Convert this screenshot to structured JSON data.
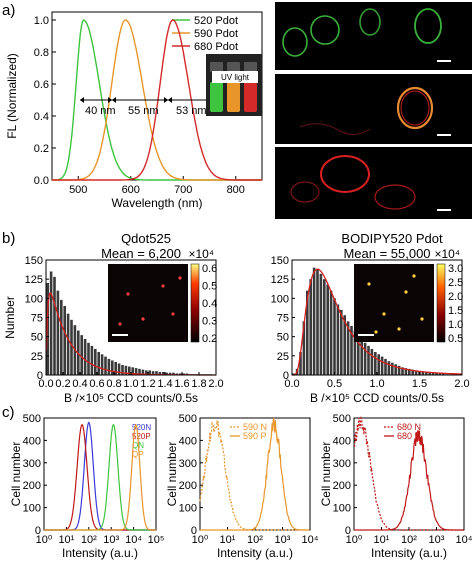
{
  "panels": {
    "a": "a)",
    "b": "b)",
    "c": "c)"
  },
  "colors": {
    "green": "#3ec43e",
    "orange": "#e8962a",
    "red": "#d42a2a",
    "blue": "#3a3adb",
    "dark_red": "#c01818",
    "hist_bar": "#3a3a3a",
    "fit": "#d42020",
    "micro_bg": "#0a0404"
  },
  "panel_a": {
    "uv_label": "UV light",
    "widths": [
      "40 nm",
      "55 nm",
      "53 nm"
    ]
  },
  "panel_b": {
    "left": {
      "title": "Qdot525",
      "mean": "Mean = 6,200",
      "multiplier": "×10⁴",
      "cbar_ticks": [
        "0.6",
        "0.5",
        "0.4",
        "0.3",
        "0.2"
      ]
    },
    "right": {
      "title": "BODIPY520 Pdot",
      "mean": "Mean = 55,000",
      "multiplier": "×10⁴",
      "cbar_ticks": [
        "3.0",
        "2.5",
        "2.0",
        "1.5",
        "1.0",
        "0.5"
      ]
    }
  },
  "chart_data": [
    {
      "type": "line",
      "panel": "a",
      "xlabel": "Wavelength (nm)",
      "ylabel": "FL (Normalized)",
      "xlim": [
        450,
        850
      ],
      "ylim": [
        0.0,
        1.05
      ],
      "xticks": [
        500,
        600,
        700,
        800
      ],
      "yticks": [
        "0.0",
        "0.2",
        "0.4",
        "0.6",
        "0.8",
        "1.0"
      ],
      "legend_position": "top-right",
      "series": [
        {
          "name": "520 Pdot",
          "color": "#3ec43e",
          "peak": 510,
          "sigma_left": 14,
          "sigma_right": 30,
          "values": [
            [
              470,
              0.0
            ],
            [
              490,
              0.4
            ],
            [
              505,
              0.95
            ],
            [
              510,
              1.0
            ],
            [
              530,
              0.75
            ],
            [
              550,
              0.4
            ],
            [
              580,
              0.12
            ],
            [
              620,
              0.02
            ],
            [
              650,
              0.0
            ]
          ]
        },
        {
          "name": "590 Pdot",
          "color": "#e8962a",
          "peak": 590,
          "sigma_left": 26,
          "sigma_right": 32,
          "values": [
            [
              500,
              0.02
            ],
            [
              540,
              0.2
            ],
            [
              570,
              0.75
            ],
            [
              590,
              1.0
            ],
            [
              610,
              0.8
            ],
            [
              640,
              0.35
            ],
            [
              680,
              0.08
            ],
            [
              720,
              0.0
            ]
          ]
        },
        {
          "name": "680 Pdot",
          "color": "#d42a2a",
          "peak": 680,
          "sigma_left": 24,
          "sigma_right": 30,
          "values": [
            [
              600,
              0.03
            ],
            [
              640,
              0.3
            ],
            [
              665,
              0.85
            ],
            [
              680,
              1.0
            ],
            [
              700,
              0.8
            ],
            [
              730,
              0.35
            ],
            [
              770,
              0.06
            ],
            [
              810,
              0.0
            ]
          ]
        }
      ]
    },
    {
      "type": "bar",
      "panel": "b-left",
      "xlabel": "B /×10⁵ CCD counts/0.5s",
      "ylabel": "Number",
      "xlim": [
        0.0,
        2.0
      ],
      "ylim": [
        0,
        150
      ],
      "xticks": [
        "0.0",
        "0.2",
        "0.4",
        "0.6",
        "0.8",
        "1.0",
        "1.2",
        "1.4",
        "1.6",
        "1.8",
        "2.0"
      ],
      "yticks": [
        "0",
        "25",
        "50",
        "75",
        "100",
        "125",
        "150"
      ],
      "bin_width": 0.04,
      "values": [
        120,
        135,
        128,
        110,
        98,
        90,
        80,
        72,
        65,
        58,
        52,
        47,
        42,
        38,
        34,
        30,
        27,
        24,
        21,
        19,
        17,
        15,
        13,
        12,
        11,
        10,
        9,
        8,
        7,
        6,
        6,
        5,
        5,
        4,
        4,
        3,
        3,
        3,
        2,
        2,
        2,
        2,
        1,
        1,
        1,
        1,
        1,
        1,
        1,
        0
      ],
      "fit": "exponential-like decay"
    },
    {
      "type": "bar",
      "panel": "b-right",
      "xlabel": "B /×10⁵ CCD counts/0.5s",
      "xlim": [
        0.0,
        2.0
      ],
      "ylim": [
        0,
        150
      ],
      "xticks": [
        "0.0",
        "0.5",
        "1.0",
        "1.5",
        "2.0"
      ],
      "yticks": [
        "0",
        "25",
        "50",
        "75",
        "100",
        "125",
        "150"
      ],
      "bin_width": 0.04,
      "values": [
        2,
        8,
        30,
        70,
        110,
        125,
        140,
        138,
        132,
        125,
        118,
        110,
        100,
        92,
        85,
        78,
        70,
        64,
        58,
        52,
        47,
        42,
        38,
        34,
        30,
        27,
        24,
        21,
        18,
        16,
        14,
        12,
        10,
        9,
        8,
        7,
        6,
        5,
        4,
        4,
        3,
        3,
        2,
        2,
        2,
        1,
        1,
        1,
        1,
        0
      ],
      "fit": "log-normal"
    },
    {
      "type": "line",
      "panel": "c-1",
      "ylabel": "Cell number",
      "xlabel": "Intensity (a.u.)",
      "ylim": [
        0,
        500
      ],
      "yticks": [
        "0",
        "100",
        "200",
        "300",
        "400",
        "500"
      ],
      "xticks": [
        "10⁰",
        "10¹",
        "10²",
        "10³",
        "10⁴",
        "10⁵"
      ],
      "series": [
        {
          "name": "520N",
          "color": "#3a3adb",
          "peak_log": 2.0,
          "sigma": 0.2,
          "height": 480
        },
        {
          "name": "520P",
          "color": "#c01818",
          "peak_log": 1.7,
          "sigma": 0.22,
          "height": 470
        },
        {
          "name": "QN",
          "color": "#3ec43e",
          "peak_log": 3.1,
          "sigma": 0.2,
          "height": 470
        },
        {
          "name": "QP",
          "color": "#e8962a",
          "peak_log": 4.1,
          "sigma": 0.18,
          "height": 470
        }
      ]
    },
    {
      "type": "line",
      "panel": "c-2",
      "ylabel": "Cell number",
      "xlabel": "Intensity (a.u.)",
      "ylim": [
        0,
        500
      ],
      "yticks": [
        "0",
        "100",
        "200",
        "300",
        "400",
        "500"
      ],
      "xticks": [
        "10⁰",
        "10¹",
        "10²",
        "10³",
        "10⁴"
      ],
      "series": [
        {
          "name": "590 N",
          "color": "#e8962a",
          "style": "dotted",
          "peak_log": 0.55,
          "sigma": 0.35,
          "height": 480
        },
        {
          "name": "590 P",
          "color": "#e8962a",
          "style": "solid",
          "peak_log": 2.7,
          "sigma": 0.25,
          "height": 470
        }
      ]
    },
    {
      "type": "line",
      "panel": "c-3",
      "ylabel": "Cell number",
      "xlabel": "Intensity (a.u.)",
      "ylim": [
        0,
        500
      ],
      "yticks": [
        "0",
        "100",
        "200",
        "300",
        "400",
        "500"
      ],
      "xticks": [
        "10⁰",
        "10¹",
        "10²",
        "10³",
        "10⁴"
      ],
      "series": [
        {
          "name": "680 N",
          "color": "#c01818",
          "style": "dotted",
          "peak_log": 0.25,
          "sigma": 0.35,
          "height": 480
        },
        {
          "name": "680 P",
          "color": "#c01818",
          "style": "solid",
          "peak_log": 2.35,
          "sigma": 0.3,
          "height": 420
        }
      ]
    }
  ]
}
